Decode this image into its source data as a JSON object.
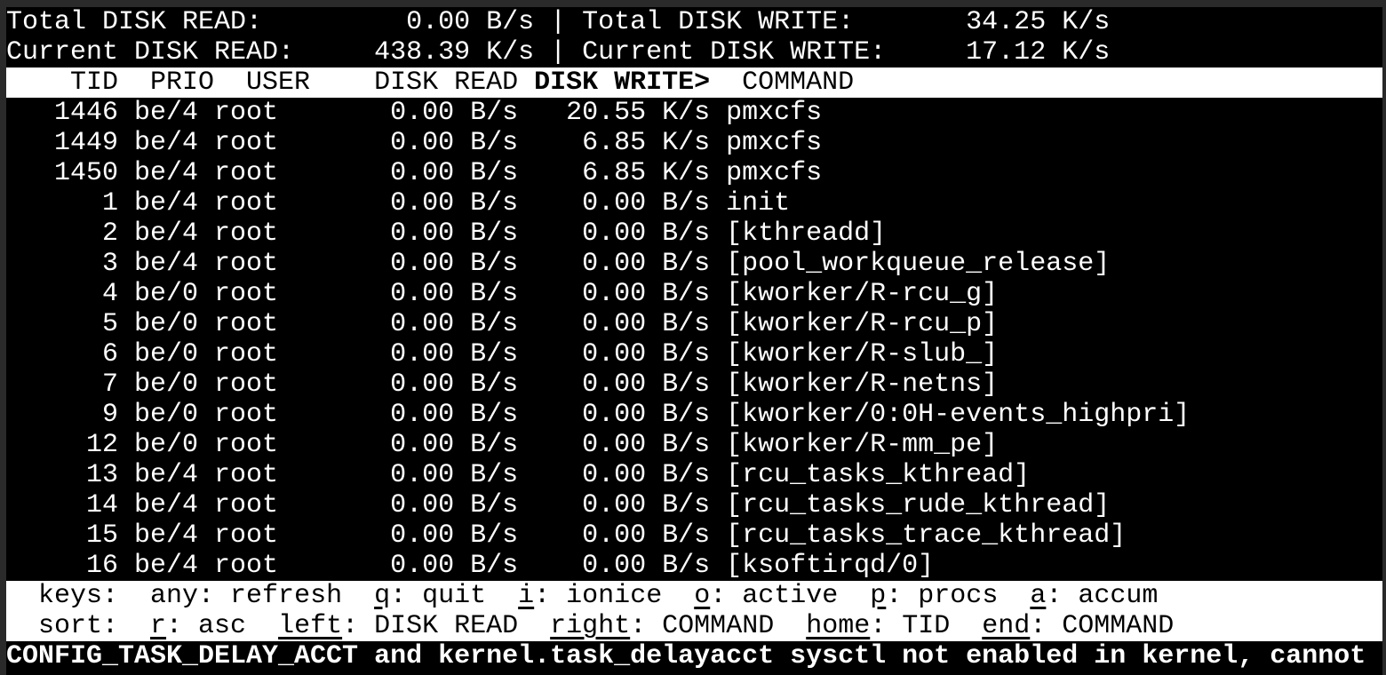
{
  "app": "iotop",
  "summary": {
    "total_read_label": "Total DISK READ:",
    "total_read_value": "0.00 B/s",
    "total_write_label": "Total DISK WRITE:",
    "total_write_value": "34.25 K/s",
    "current_read_label": "Current DISK READ:",
    "current_read_value": "438.39 K/s",
    "current_write_label": "Current DISK WRITE:",
    "current_write_value": "17.12 K/s",
    "separator": "|"
  },
  "table": {
    "columns": [
      "TID",
      "PRIO",
      "USER",
      "DISK READ",
      "DISK WRITE>",
      "COMMAND"
    ],
    "sort_column": "DISK WRITE>",
    "rows": [
      {
        "tid": "1446",
        "prio": "be/4",
        "user": "root",
        "disk_read": "0.00 B/s",
        "disk_write": "20.55 K/s",
        "command": "pmxcfs"
      },
      {
        "tid": "1449",
        "prio": "be/4",
        "user": "root",
        "disk_read": "0.00 B/s",
        "disk_write": "6.85 K/s",
        "command": "pmxcfs"
      },
      {
        "tid": "1450",
        "prio": "be/4",
        "user": "root",
        "disk_read": "0.00 B/s",
        "disk_write": "6.85 K/s",
        "command": "pmxcfs"
      },
      {
        "tid": "1",
        "prio": "be/4",
        "user": "root",
        "disk_read": "0.00 B/s",
        "disk_write": "0.00 B/s",
        "command": "init"
      },
      {
        "tid": "2",
        "prio": "be/4",
        "user": "root",
        "disk_read": "0.00 B/s",
        "disk_write": "0.00 B/s",
        "command": "[kthreadd]"
      },
      {
        "tid": "3",
        "prio": "be/4",
        "user": "root",
        "disk_read": "0.00 B/s",
        "disk_write": "0.00 B/s",
        "command": "[pool_workqueue_release]"
      },
      {
        "tid": "4",
        "prio": "be/0",
        "user": "root",
        "disk_read": "0.00 B/s",
        "disk_write": "0.00 B/s",
        "command": "[kworker/R-rcu_g]"
      },
      {
        "tid": "5",
        "prio": "be/0",
        "user": "root",
        "disk_read": "0.00 B/s",
        "disk_write": "0.00 B/s",
        "command": "[kworker/R-rcu_p]"
      },
      {
        "tid": "6",
        "prio": "be/0",
        "user": "root",
        "disk_read": "0.00 B/s",
        "disk_write": "0.00 B/s",
        "command": "[kworker/R-slub_]"
      },
      {
        "tid": "7",
        "prio": "be/0",
        "user": "root",
        "disk_read": "0.00 B/s",
        "disk_write": "0.00 B/s",
        "command": "[kworker/R-netns]"
      },
      {
        "tid": "9",
        "prio": "be/0",
        "user": "root",
        "disk_read": "0.00 B/s",
        "disk_write": "0.00 B/s",
        "command": "[kworker/0:0H-events_highpri]"
      },
      {
        "tid": "12",
        "prio": "be/0",
        "user": "root",
        "disk_read": "0.00 B/s",
        "disk_write": "0.00 B/s",
        "command": "[kworker/R-mm_pe]"
      },
      {
        "tid": "13",
        "prio": "be/4",
        "user": "root",
        "disk_read": "0.00 B/s",
        "disk_write": "0.00 B/s",
        "command": "[rcu_tasks_kthread]"
      },
      {
        "tid": "14",
        "prio": "be/4",
        "user": "root",
        "disk_read": "0.00 B/s",
        "disk_write": "0.00 B/s",
        "command": "[rcu_tasks_rude_kthread]"
      },
      {
        "tid": "15",
        "prio": "be/4",
        "user": "root",
        "disk_read": "0.00 B/s",
        "disk_write": "0.00 B/s",
        "command": "[rcu_tasks_trace_kthread]"
      },
      {
        "tid": "16",
        "prio": "be/4",
        "user": "root",
        "disk_read": "0.00 B/s",
        "disk_write": "0.00 B/s",
        "command": "[ksoftirqd/0]"
      }
    ]
  },
  "footer": {
    "keys_line": {
      "label": "keys:",
      "items": [
        {
          "key": "any",
          "underline": false,
          "desc": "refresh"
        },
        {
          "key": "q",
          "underline": true,
          "desc": "quit"
        },
        {
          "key": "i",
          "underline": true,
          "desc": "ionice"
        },
        {
          "key": "o",
          "underline": true,
          "desc": "active"
        },
        {
          "key": "p",
          "underline": true,
          "desc": "procs"
        },
        {
          "key": "a",
          "underline": true,
          "desc": "accum"
        }
      ]
    },
    "sort_line": {
      "label": "sort:",
      "items": [
        {
          "key": "r",
          "underline": true,
          "desc": "asc"
        },
        {
          "key": "left",
          "underline": true,
          "desc": "DISK READ"
        },
        {
          "key": "right",
          "underline": true,
          "desc": "COMMAND"
        },
        {
          "key": "home",
          "underline": true,
          "desc": "TID"
        },
        {
          "key": "end",
          "underline": true,
          "desc": "COMMAND"
        }
      ]
    },
    "status_line": "CONFIG_TASK_DELAY_ACCT and kernel.task_delayacct sysctl not enabled in kernel, cannot"
  },
  "colors": {
    "background": "#000000",
    "frame": "#2a2a2a",
    "text": "#ffffff",
    "inverse_bg": "#ffffff",
    "inverse_text": "#000000"
  }
}
